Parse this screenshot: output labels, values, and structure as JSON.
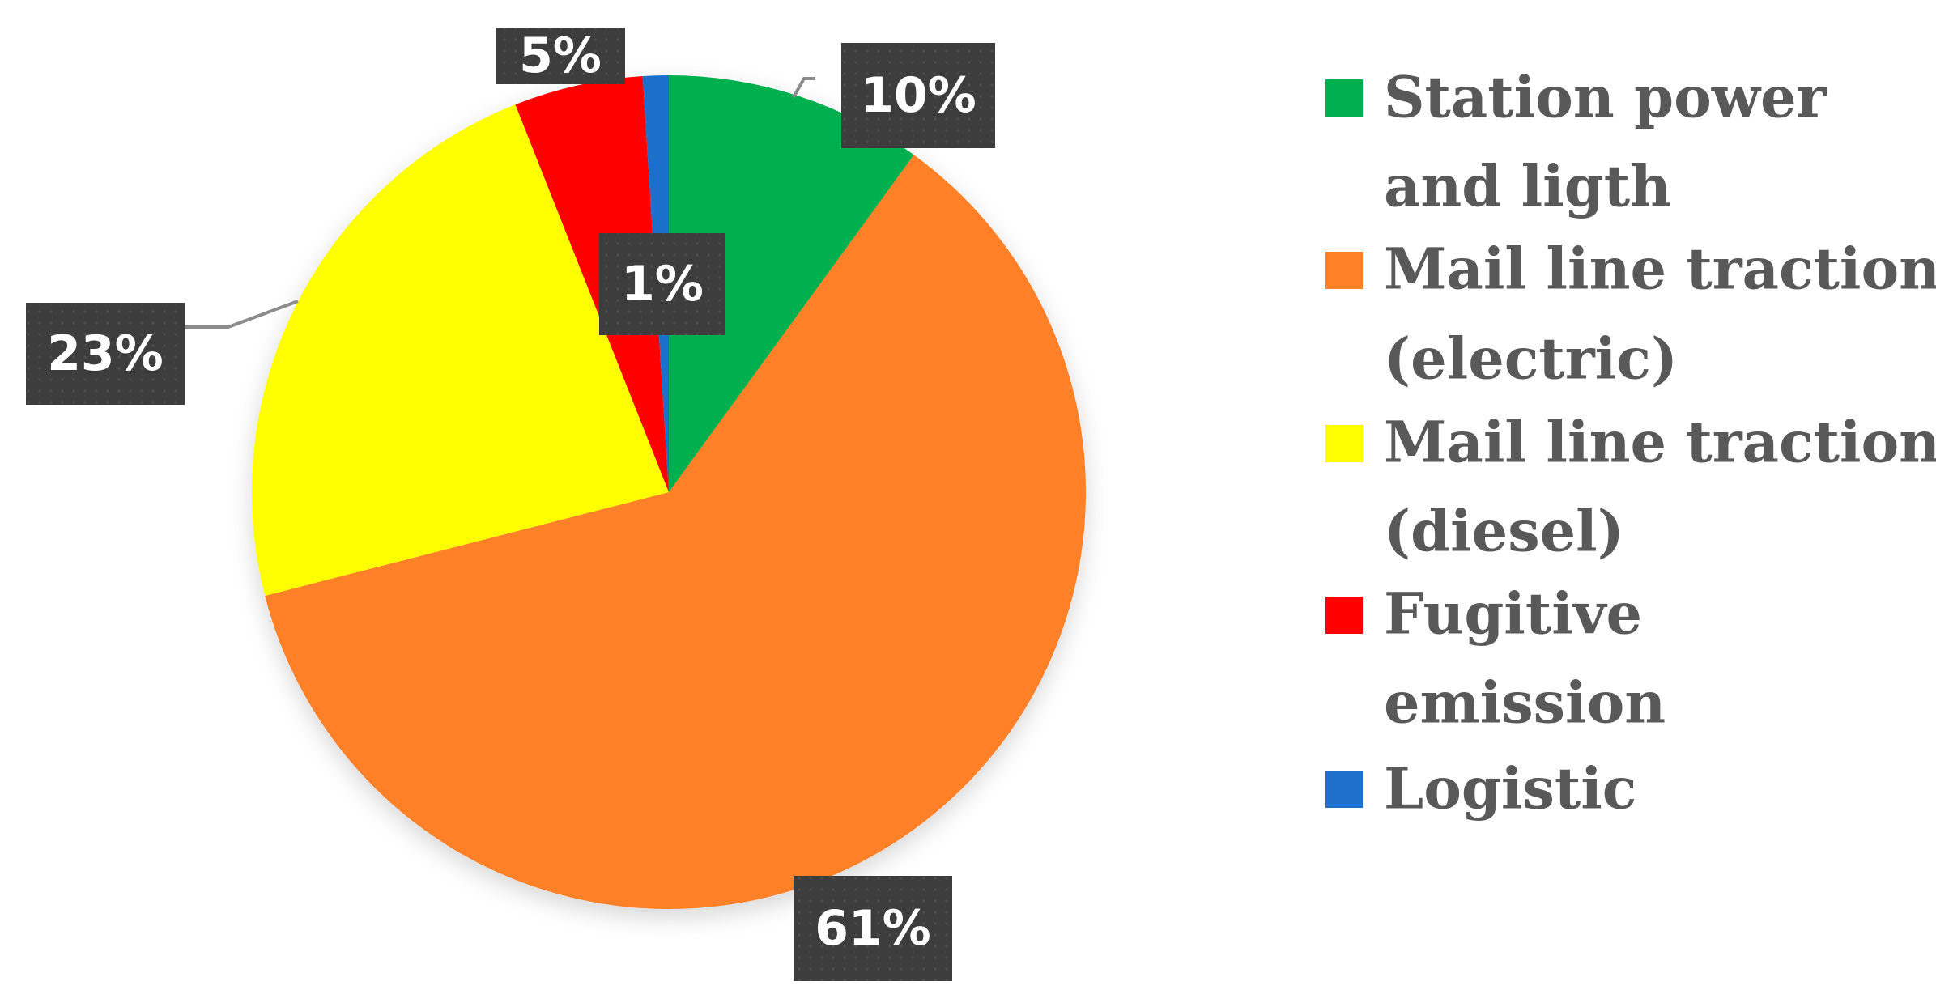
{
  "chart_data": {
    "type": "pie",
    "start_angle_deg": 0,
    "direction": "clockwise",
    "legend_position": "right",
    "slices": [
      {
        "label": "Station power and ligth",
        "legend_lines": [
          "Station power",
          "and ligth"
        ],
        "value": 10,
        "display": "10%",
        "color": "#00B050"
      },
      {
        "label": "Mail line traction (electric)",
        "legend_lines": [
          "Mail line traction",
          "(electric)"
        ],
        "value": 61,
        "display": "61%",
        "color": "#FF8026"
      },
      {
        "label": "Mail line traction (diesel)",
        "legend_lines": [
          "Mail line traction",
          "(diesel)"
        ],
        "value": 23,
        "display": "23%",
        "color": "#FFFF00"
      },
      {
        "label": "Fugitive emission",
        "legend_lines": [
          "Fugitive",
          "emission"
        ],
        "value": 5,
        "display": "5%",
        "color": "#FF0000"
      },
      {
        "label": "Logistic",
        "legend_lines": [
          "Logistic"
        ],
        "value": 1,
        "display": "1%",
        "color": "#1F6FCC"
      }
    ]
  }
}
